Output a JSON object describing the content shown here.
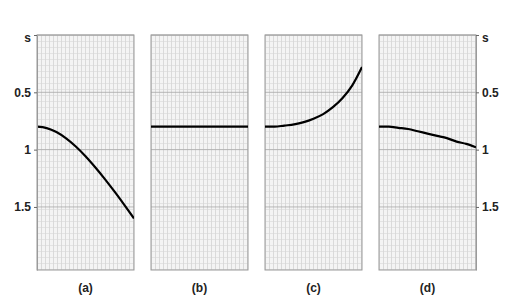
{
  "chart_data": [
    {
      "type": "line",
      "title": "(a)",
      "x": [
        0,
        0.1,
        0.2,
        0.3,
        0.4,
        0.5,
        0.6,
        0.7,
        0.8,
        0.9,
        1.0
      ],
      "values": [
        0.8,
        0.812,
        0.847,
        0.902,
        0.973,
        1.058,
        1.154,
        1.257,
        1.367,
        1.482,
        1.6
      ],
      "color": "#000000",
      "xlim": [
        0,
        1
      ],
      "ylim": [
        0,
        2.05
      ],
      "yticks": [
        {
          "value": 0,
          "label": "s"
        },
        0.5,
        1,
        1.5
      ],
      "grid": true,
      "tick_labels": "y"
    },
    {
      "type": "line",
      "title": "(b)",
      "x": [
        0,
        0.1,
        0.2,
        0.3,
        0.4,
        0.5,
        0.6,
        0.7,
        0.8,
        0.9,
        1.0
      ],
      "values": [
        0.8,
        0.8,
        0.8,
        0.8,
        0.8,
        0.8,
        0.8,
        0.8,
        0.8,
        0.8,
        0.8
      ],
      "color": "#000000",
      "xlim": [
        0,
        1
      ],
      "ylim": [
        0,
        2.05
      ],
      "yticks": [
        {
          "value": 0,
          "label": "s"
        },
        0.5,
        1,
        1.5
      ],
      "grid": true,
      "tick_labels": false
    },
    {
      "type": "line",
      "title": "(c)",
      "x": [
        0,
        0.1,
        0.2,
        0.3,
        0.4,
        0.5,
        0.6,
        0.7,
        0.8,
        0.9,
        1.0
      ],
      "values": [
        0.8,
        0.8,
        0.79,
        0.78,
        0.76,
        0.73,
        0.69,
        0.63,
        0.55,
        0.44,
        0.28
      ],
      "color": "#000000",
      "xlim": [
        0,
        1
      ],
      "ylim": [
        0,
        2.05
      ],
      "yticks": [
        {
          "value": 0,
          "label": "s"
        },
        0.5,
        1,
        1.5
      ],
      "grid": true,
      "tick_labels": false
    },
    {
      "type": "line",
      "title": "(d)",
      "x": [
        0,
        0.1,
        0.2,
        0.3,
        0.4,
        0.5,
        0.6,
        0.7,
        0.8,
        0.9,
        1.0
      ],
      "values": [
        0.8,
        0.8,
        0.81,
        0.82,
        0.84,
        0.86,
        0.88,
        0.9,
        0.93,
        0.95,
        0.98
      ],
      "color": "#000000",
      "xlim": [
        0,
        1
      ],
      "ylim": [
        0,
        2.05
      ],
      "yticks": [
        {
          "value": 0,
          "label": "s"
        },
        0.5,
        1,
        1.5
      ],
      "grid": true,
      "tick_labels": "y"
    }
  ]
}
